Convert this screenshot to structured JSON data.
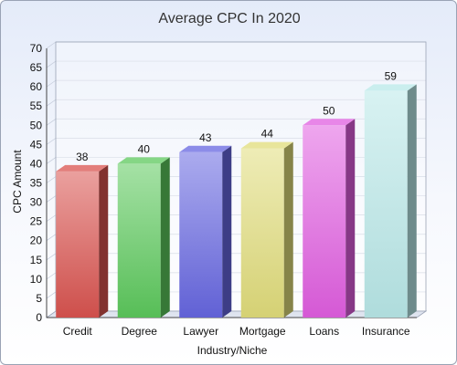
{
  "chart_data": {
    "type": "bar",
    "title": "Average CPC In 2020",
    "xlabel": "Industry/Niche",
    "ylabel": "CPC Amount",
    "categories": [
      "Credit",
      "Degree",
      "Lawyer",
      "Mortgage",
      "Loans",
      "Insurance"
    ],
    "values": [
      38,
      40,
      43,
      44,
      50,
      59
    ],
    "value_labels": [
      "38",
      "40",
      "43",
      "44",
      "50",
      "59"
    ],
    "ylim": [
      0,
      70
    ],
    "yticks": [
      "0",
      "5",
      "10",
      "15",
      "20",
      "25",
      "30",
      "35",
      "40",
      "45",
      "50",
      "55",
      "60",
      "65",
      "70"
    ],
    "grid": true,
    "legend": "none",
    "style": "3d-columns",
    "colors": [
      "#d9534f",
      "#5cc85c",
      "#6666e0",
      "#e0dc7a",
      "#e05ee0",
      "#b8e8e8"
    ]
  }
}
